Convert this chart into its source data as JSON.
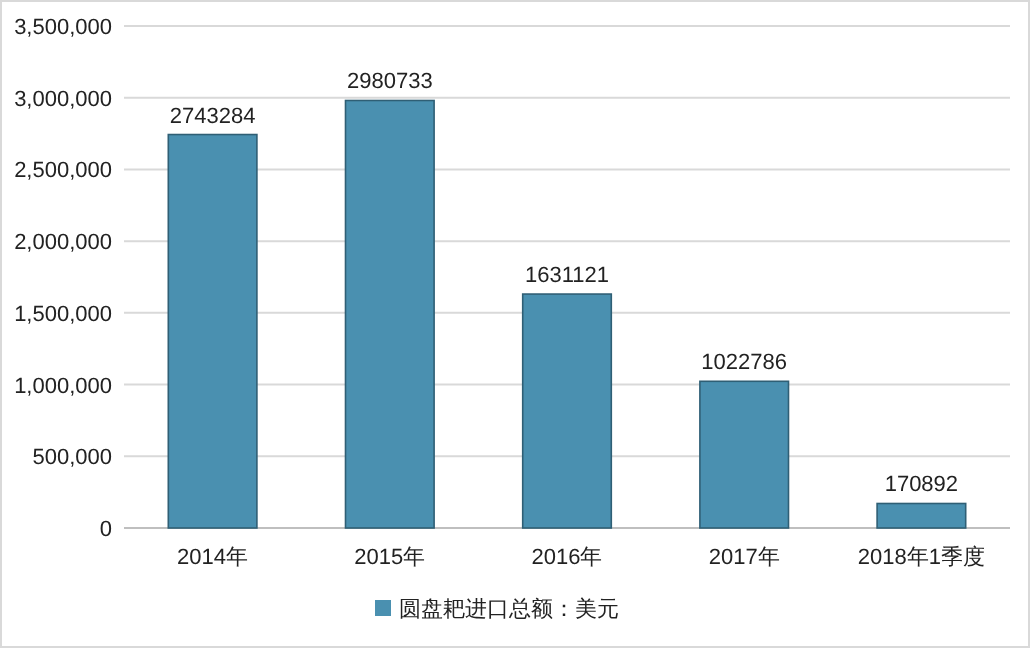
{
  "chart_data": {
    "type": "bar",
    "categories": [
      "2014年",
      "2015年",
      "2016年",
      "2017年",
      "2018年1季度"
    ],
    "series": [
      {
        "name": "圆盘耙进口总额：美元",
        "color": "#4a90b0",
        "values": [
          2743284,
          2980733,
          1631121,
          1022786,
          170892
        ]
      }
    ],
    "ylim": [
      0,
      3500000
    ],
    "yticks": [
      0,
      {
        "value": 500000,
        "label": "500,000"
      },
      {
        "value": 1000000,
        "label": "1,000,000"
      },
      {
        "value": 1500000,
        "label": "1,500,000"
      },
      {
        "value": 2000000,
        "label": "2,000,000"
      },
      {
        "value": 2500000,
        "label": "2,500,000"
      },
      {
        "value": 3000000,
        "label": "3,000,000"
      },
      {
        "value": 3500000,
        "label": "3,500,000"
      }
    ],
    "grid": "y",
    "legend": "bottom",
    "data_labels": true
  }
}
